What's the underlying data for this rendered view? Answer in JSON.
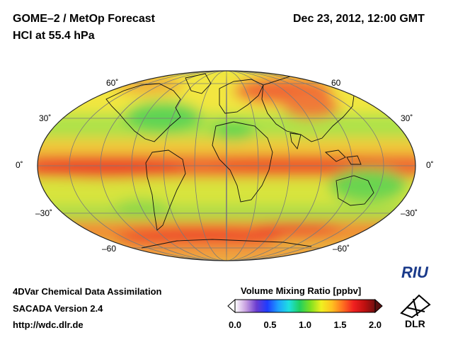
{
  "title": {
    "line1": "GOME–2 / MetOp Forecast",
    "line2": "HCl at 55.4 hPa",
    "datetime": "Dec 23, 2012, 12:00 GMT"
  },
  "map": {
    "projection": "Mollweide",
    "lat_labels_left": [
      "60˚",
      "30˚",
      "0˚",
      "–30˚",
      "–60"
    ],
    "lat_labels_right": [
      "60",
      "30˚",
      "0˚",
      "–30˚",
      "–60˚"
    ]
  },
  "footer": {
    "line1": "4DVar Chemical Data Assimilation",
    "line2": "SACADA Version 2.4",
    "url": "http://wdc.dlr.de"
  },
  "colorbar": {
    "label": "Volume Mixing Ratio [ppbv]",
    "ticks": [
      "0.0",
      "0.5",
      "1.0",
      "1.5",
      "2.0"
    ],
    "range": [
      0.0,
      2.0
    ],
    "colors": [
      "#ffffff",
      "#c8a0e0",
      "#6a3cd0",
      "#1e3cff",
      "#1ea0ff",
      "#1ee0e0",
      "#20d060",
      "#80e020",
      "#f0f020",
      "#ffc020",
      "#ff7020",
      "#f02020",
      "#c01010",
      "#701010"
    ]
  },
  "logos": {
    "riu": "RIU",
    "dlr": "DLR"
  }
}
